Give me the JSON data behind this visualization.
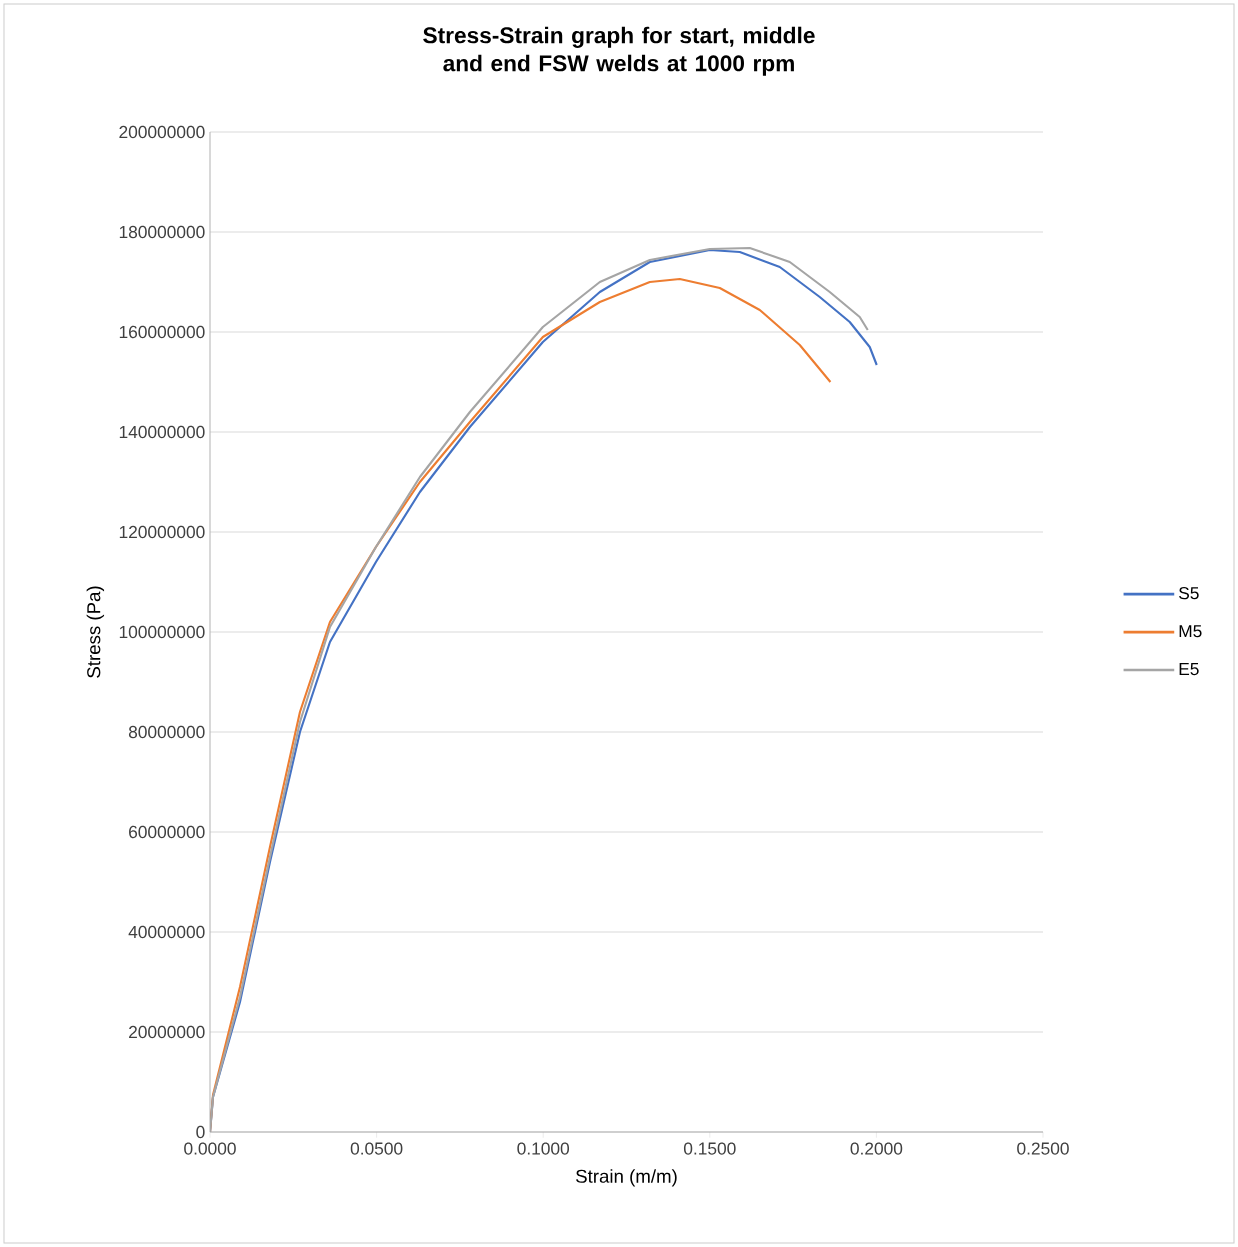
{
  "chart_data": {
    "type": "line",
    "title": "Stress-Strain graph for start, middle and end FSW welds at 1000 rpm",
    "xlabel": "Strain (m/m)",
    "ylabel": "Stress (Pa)",
    "xlim": [
      0,
      0.25
    ],
    "ylim": [
      0,
      200000000
    ],
    "xticks": [
      {
        "value": 0,
        "label": "0.0000"
      },
      {
        "value": 0.05,
        "label": "0.0500"
      },
      {
        "value": 0.1,
        "label": "0.1000"
      },
      {
        "value": 0.15,
        "label": "0.1500"
      },
      {
        "value": 0.2,
        "label": "0.2000"
      },
      {
        "value": 0.25,
        "label": "0.2500"
      }
    ],
    "yticks": [
      0,
      20000000,
      40000000,
      60000000,
      80000000,
      100000000,
      120000000,
      140000000,
      160000000,
      180000000,
      200000000
    ],
    "grid": "y",
    "legend": "right",
    "marker": "none",
    "line_style": "solid",
    "series": [
      {
        "name": "S5",
        "color": "#4472c4",
        "x": [
          0,
          0.0009,
          0.009,
          0.018,
          0.027,
          0.036,
          0.0498,
          0.063,
          0.078,
          0.0999,
          0.117,
          0.132,
          0.15,
          0.159,
          0.171,
          0.183,
          0.192,
          0.198,
          0.2001
        ],
        "values": [
          0,
          7000000,
          26000000,
          54000000,
          80000000,
          98000000,
          114000000,
          128000000,
          141000000,
          158000000,
          168000000,
          174000000,
          176400000,
          176000000,
          173000000,
          167000000,
          162000000,
          157000000,
          153400000
        ]
      },
      {
        "name": "M5",
        "color": "#ed7d31",
        "x": [
          0,
          0.0009,
          0.009,
          0.018,
          0.027,
          0.036,
          0.0498,
          0.063,
          0.078,
          0.0999,
          0.117,
          0.132,
          0.141,
          0.153,
          0.165,
          0.177,
          0.1862
        ],
        "values": [
          0,
          7400000,
          29000000,
          57000000,
          84000000,
          102000000,
          117000000,
          130000000,
          142000000,
          159000000,
          166000000,
          170000000,
          170600000,
          168800000,
          164400000,
          157400000,
          150000000
        ]
      },
      {
        "name": "E5",
        "color": "#a5a5a5",
        "x": [
          0,
          0.0009,
          0.009,
          0.018,
          0.027,
          0.036,
          0.0498,
          0.063,
          0.078,
          0.0999,
          0.117,
          0.132,
          0.15,
          0.162,
          0.174,
          0.186,
          0.195,
          0.1974
        ],
        "values": [
          0,
          7000000,
          27000000,
          55000000,
          82000000,
          101000000,
          117000000,
          131000000,
          144000000,
          161000000,
          170000000,
          174400000,
          176600000,
          176800000,
          174000000,
          168000000,
          163000000,
          160400000
        ]
      }
    ]
  }
}
